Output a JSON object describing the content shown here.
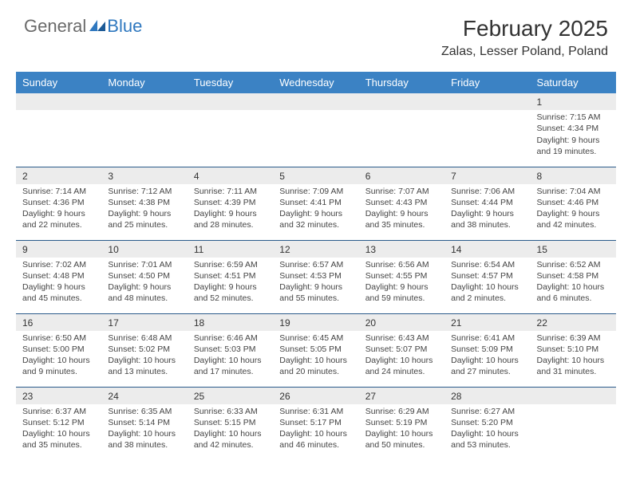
{
  "logo": {
    "general": "General",
    "blue": "Blue",
    "icon_color": "#2f78bf"
  },
  "title": "February 2025",
  "location": "Zalas, Lesser Poland, Poland",
  "header_bg": "#3b82c4",
  "header_fg": "#ffffff",
  "daynum_bg": "#ececec",
  "row_border": "#2a5a8a",
  "dayHeaders": [
    "Sunday",
    "Monday",
    "Tuesday",
    "Wednesday",
    "Thursday",
    "Friday",
    "Saturday"
  ],
  "weeks": [
    [
      null,
      null,
      null,
      null,
      null,
      null,
      {
        "n": "1",
        "sunrise": "7:15 AM",
        "sunset": "4:34 PM",
        "day_h": 9,
        "day_m": 19
      }
    ],
    [
      {
        "n": "2",
        "sunrise": "7:14 AM",
        "sunset": "4:36 PM",
        "day_h": 9,
        "day_m": 22
      },
      {
        "n": "3",
        "sunrise": "7:12 AM",
        "sunset": "4:38 PM",
        "day_h": 9,
        "day_m": 25
      },
      {
        "n": "4",
        "sunrise": "7:11 AM",
        "sunset": "4:39 PM",
        "day_h": 9,
        "day_m": 28
      },
      {
        "n": "5",
        "sunrise": "7:09 AM",
        "sunset": "4:41 PM",
        "day_h": 9,
        "day_m": 32
      },
      {
        "n": "6",
        "sunrise": "7:07 AM",
        "sunset": "4:43 PM",
        "day_h": 9,
        "day_m": 35
      },
      {
        "n": "7",
        "sunrise": "7:06 AM",
        "sunset": "4:44 PM",
        "day_h": 9,
        "day_m": 38
      },
      {
        "n": "8",
        "sunrise": "7:04 AM",
        "sunset": "4:46 PM",
        "day_h": 9,
        "day_m": 42
      }
    ],
    [
      {
        "n": "9",
        "sunrise": "7:02 AM",
        "sunset": "4:48 PM",
        "day_h": 9,
        "day_m": 45
      },
      {
        "n": "10",
        "sunrise": "7:01 AM",
        "sunset": "4:50 PM",
        "day_h": 9,
        "day_m": 48
      },
      {
        "n": "11",
        "sunrise": "6:59 AM",
        "sunset": "4:51 PM",
        "day_h": 9,
        "day_m": 52
      },
      {
        "n": "12",
        "sunrise": "6:57 AM",
        "sunset": "4:53 PM",
        "day_h": 9,
        "day_m": 55
      },
      {
        "n": "13",
        "sunrise": "6:56 AM",
        "sunset": "4:55 PM",
        "day_h": 9,
        "day_m": 59
      },
      {
        "n": "14",
        "sunrise": "6:54 AM",
        "sunset": "4:57 PM",
        "day_h": 10,
        "day_m": 2
      },
      {
        "n": "15",
        "sunrise": "6:52 AM",
        "sunset": "4:58 PM",
        "day_h": 10,
        "day_m": 6
      }
    ],
    [
      {
        "n": "16",
        "sunrise": "6:50 AM",
        "sunset": "5:00 PM",
        "day_h": 10,
        "day_m": 9
      },
      {
        "n": "17",
        "sunrise": "6:48 AM",
        "sunset": "5:02 PM",
        "day_h": 10,
        "day_m": 13
      },
      {
        "n": "18",
        "sunrise": "6:46 AM",
        "sunset": "5:03 PM",
        "day_h": 10,
        "day_m": 17
      },
      {
        "n": "19",
        "sunrise": "6:45 AM",
        "sunset": "5:05 PM",
        "day_h": 10,
        "day_m": 20
      },
      {
        "n": "20",
        "sunrise": "6:43 AM",
        "sunset": "5:07 PM",
        "day_h": 10,
        "day_m": 24
      },
      {
        "n": "21",
        "sunrise": "6:41 AM",
        "sunset": "5:09 PM",
        "day_h": 10,
        "day_m": 27
      },
      {
        "n": "22",
        "sunrise": "6:39 AM",
        "sunset": "5:10 PM",
        "day_h": 10,
        "day_m": 31
      }
    ],
    [
      {
        "n": "23",
        "sunrise": "6:37 AM",
        "sunset": "5:12 PM",
        "day_h": 10,
        "day_m": 35
      },
      {
        "n": "24",
        "sunrise": "6:35 AM",
        "sunset": "5:14 PM",
        "day_h": 10,
        "day_m": 38
      },
      {
        "n": "25",
        "sunrise": "6:33 AM",
        "sunset": "5:15 PM",
        "day_h": 10,
        "day_m": 42
      },
      {
        "n": "26",
        "sunrise": "6:31 AM",
        "sunset": "5:17 PM",
        "day_h": 10,
        "day_m": 46
      },
      {
        "n": "27",
        "sunrise": "6:29 AM",
        "sunset": "5:19 PM",
        "day_h": 10,
        "day_m": 50
      },
      {
        "n": "28",
        "sunrise": "6:27 AM",
        "sunset": "5:20 PM",
        "day_h": 10,
        "day_m": 53
      },
      null
    ]
  ],
  "labels": {
    "sunrise": "Sunrise:",
    "sunset": "Sunset:",
    "daylight": "Daylight:"
  }
}
